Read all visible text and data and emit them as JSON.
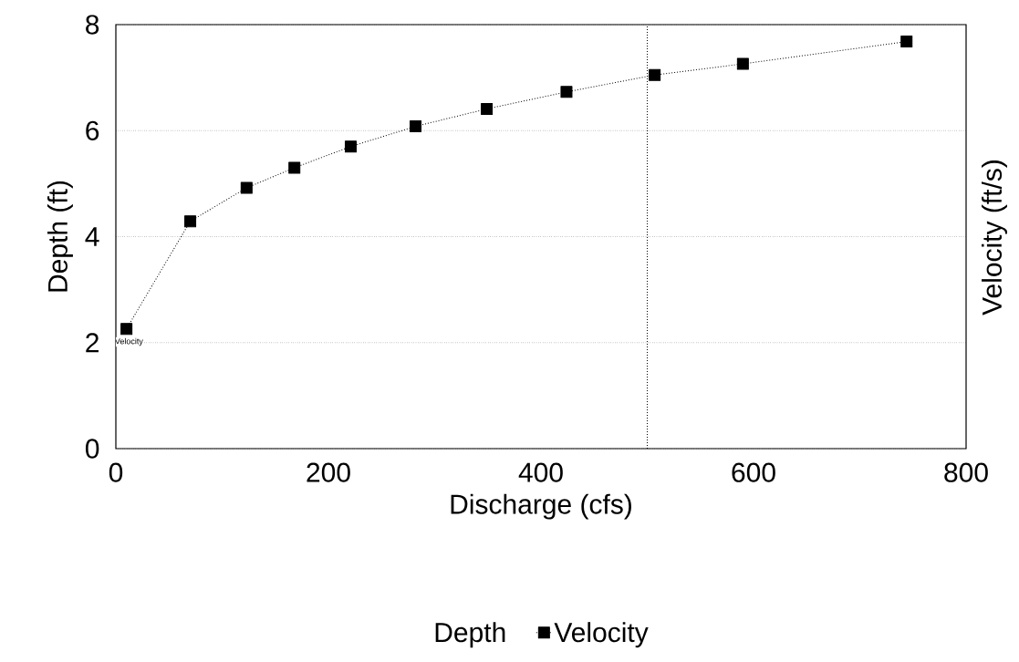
{
  "chart_data": {
    "type": "line",
    "xlabel": "Discharge (cfs)",
    "ylabel": "Depth (ft)",
    "y2label": "Velocity (ft/s)",
    "xlim": [
      0,
      800
    ],
    "ylim": [
      0,
      8
    ],
    "xticks": [
      0,
      200,
      400,
      600,
      800
    ],
    "yticks": [
      0,
      2,
      4,
      6,
      8
    ],
    "x": [
      10,
      70,
      123,
      168,
      221,
      282,
      349,
      424,
      507,
      590,
      744
    ],
    "series": [
      {
        "name": "Depth",
        "values": [
          null,
          null,
          null,
          null,
          null,
          null,
          null,
          null,
          null,
          null,
          null
        ]
      },
      {
        "name": "Velocity",
        "color": "#000000",
        "marker": "square",
        "line_style": "dotted",
        "values": [
          2.26,
          4.29,
          4.92,
          5.3,
          5.7,
          6.08,
          6.41,
          6.73,
          7.05,
          7.26,
          7.68
        ]
      }
    ],
    "annotations": [
      {
        "text": "Velocity",
        "x": 10,
        "y": 2.26
      }
    ],
    "ref_lines": [
      {
        "axis": "x",
        "value": 500,
        "line_style": "dotted"
      }
    ],
    "grid": "y",
    "legend": "bottom"
  }
}
